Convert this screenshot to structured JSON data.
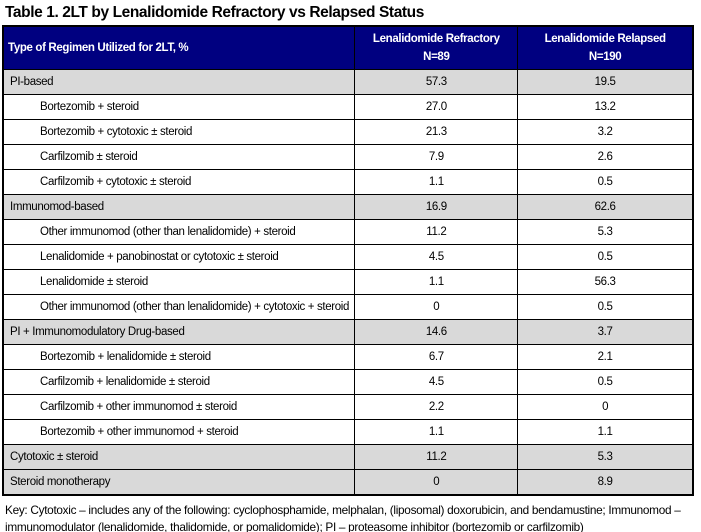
{
  "title": "Table 1. 2LT by Lenalidomide Refractory vs Relapsed Status",
  "colors": {
    "header_background": "#000080",
    "header_text": "#ffffff",
    "category_row_background": "#D9D9D9",
    "border": "#000000"
  },
  "table": {
    "header": {
      "col1": "Type of Regimen Utilized for 2LT, %",
      "col2_title": "Lenalidomide Refractory",
      "col2_n": "N=89",
      "col3_title": "Lenalidomide Relapsed",
      "col3_n": "N=190"
    },
    "rows": [
      {
        "label": "PI-based",
        "refractory": "57.3",
        "relapsed": "19.5",
        "category": true
      },
      {
        "label": "Bortezomib + steroid",
        "refractory": "27.0",
        "relapsed": "13.2",
        "category": false
      },
      {
        "label": "Bortezomib + cytotoxic ± steroid",
        "refractory": "21.3",
        "relapsed": "3.2",
        "category": false
      },
      {
        "label": "Carfilzomib ± steroid",
        "refractory": "7.9",
        "relapsed": "2.6",
        "category": false
      },
      {
        "label": "Carfilzomib + cytotoxic ± steroid",
        "refractory": "1.1",
        "relapsed": "0.5",
        "category": false
      },
      {
        "label": "Immunomod-based",
        "refractory": "16.9",
        "relapsed": "62.6",
        "category": true
      },
      {
        "label": "Other immunomod (other than lenalidomide) + steroid",
        "refractory": "11.2",
        "relapsed": "5.3",
        "category": false
      },
      {
        "label": "Lenalidomide + panobinostat or cytotoxic ± steroid",
        "refractory": "4.5",
        "relapsed": "0.5",
        "category": false
      },
      {
        "label": "Lenalidomide ± steroid",
        "refractory": "1.1",
        "relapsed": "56.3",
        "category": false
      },
      {
        "label": "Other immunomod (other than lenalidomide) + cytotoxic + steroid",
        "refractory": "0",
        "relapsed": "0.5",
        "category": false
      },
      {
        "label": "PI + Immunomodulatory Drug-based",
        "refractory": "14.6",
        "relapsed": "3.7",
        "category": true
      },
      {
        "label": "Bortezomib + lenalidomide ± steroid",
        "refractory": "6.7",
        "relapsed": "2.1",
        "category": false
      },
      {
        "label": "Carfilzomib + lenalidomide ± steroid",
        "refractory": "4.5",
        "relapsed": "0.5",
        "category": false
      },
      {
        "label": "Carfilzomib + other immunomod ± steroid",
        "refractory": "2.2",
        "relapsed": "0",
        "category": false
      },
      {
        "label": "Bortezomib + other immunomod + steroid",
        "refractory": "1.1",
        "relapsed": "1.1",
        "category": false
      },
      {
        "label": "Cytotoxic ± steroid",
        "refractory": "11.2",
        "relapsed": "5.3",
        "category": true
      },
      {
        "label": "Steroid monotherapy",
        "refractory": "0",
        "relapsed": "8.9",
        "category": true
      }
    ]
  },
  "footnote": "Key: Cytotoxic – includes any of the following:  cyclophosphamide, melphalan, (liposomal) doxorubicin, and bendamustine; Immunomod – immunomodulator (lenalidomide, thalidomide, or pomalidomide);  PI – proteasome inhibitor (bortezomib or carfilzomib)"
}
